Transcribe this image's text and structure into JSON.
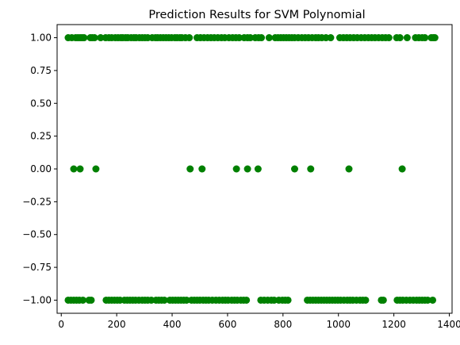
{
  "chart_data": {
    "type": "scatter",
    "title": "Prediction Results for SVM Polynomial",
    "xlabel": "",
    "ylabel": "",
    "xlim": [
      -15,
      1410
    ],
    "ylim": [
      -1.1,
      1.1
    ],
    "x_ticks": [
      0,
      200,
      400,
      600,
      800,
      1000,
      1200,
      1400
    ],
    "x_tick_labels": [
      "0",
      "200",
      "400",
      "600",
      "800",
      "1000",
      "1200",
      "1400"
    ],
    "y_ticks": [
      1.0,
      0.75,
      0.5,
      0.25,
      0.0,
      -0.25,
      -0.5,
      -0.75,
      -1.0
    ],
    "y_tick_labels": [
      "1.00",
      "0.75",
      "0.50",
      "0.25",
      "0.00",
      "−0.25",
      "−0.50",
      "−0.75",
      "−1.00"
    ],
    "grid": false,
    "marker_color": "#008000",
    "series": [
      {
        "points": [
          [
            25,
            1
          ],
          [
            38,
            1
          ],
          [
            52,
            1
          ],
          [
            60,
            1
          ],
          [
            68,
            1
          ],
          [
            75,
            1
          ],
          [
            82,
            1
          ],
          [
            105,
            1
          ],
          [
            112,
            1
          ],
          [
            120,
            1
          ],
          [
            142,
            1
          ],
          [
            160,
            1
          ],
          [
            172,
            1
          ],
          [
            182,
            1
          ],
          [
            195,
            1
          ],
          [
            205,
            1
          ],
          [
            215,
            1
          ],
          [
            222,
            1
          ],
          [
            232,
            1
          ],
          [
            240,
            1
          ],
          [
            252,
            1
          ],
          [
            262,
            1
          ],
          [
            270,
            1
          ],
          [
            282,
            1
          ],
          [
            292,
            1
          ],
          [
            302,
            1
          ],
          [
            312,
            1
          ],
          [
            328,
            1
          ],
          [
            340,
            1
          ],
          [
            348,
            1
          ],
          [
            358,
            1
          ],
          [
            368,
            1
          ],
          [
            378,
            1
          ],
          [
            388,
            1
          ],
          [
            398,
            1
          ],
          [
            410,
            1
          ],
          [
            418,
            1
          ],
          [
            428,
            1
          ],
          [
            435,
            1
          ],
          [
            448,
            1
          ],
          [
            462,
            1
          ],
          [
            490,
            1
          ],
          [
            502,
            1
          ],
          [
            515,
            1
          ],
          [
            528,
            1
          ],
          [
            540,
            1
          ],
          [
            552,
            1
          ],
          [
            565,
            1
          ],
          [
            578,
            1
          ],
          [
            590,
            1
          ],
          [
            605,
            1
          ],
          [
            618,
            1
          ],
          [
            630,
            1
          ],
          [
            642,
            1
          ],
          [
            660,
            1
          ],
          [
            672,
            1
          ],
          [
            682,
            1
          ],
          [
            700,
            1
          ],
          [
            712,
            1
          ],
          [
            722,
            1
          ],
          [
            750,
            1
          ],
          [
            772,
            1
          ],
          [
            782,
            1
          ],
          [
            792,
            1
          ],
          [
            802,
            1
          ],
          [
            812,
            1
          ],
          [
            822,
            1
          ],
          [
            832,
            1
          ],
          [
            842,
            1
          ],
          [
            855,
            1
          ],
          [
            868,
            1
          ],
          [
            880,
            1
          ],
          [
            892,
            1
          ],
          [
            905,
            1
          ],
          [
            918,
            1
          ],
          [
            928,
            1
          ],
          [
            940,
            1
          ],
          [
            955,
            1
          ],
          [
            972,
            1
          ],
          [
            1005,
            1
          ],
          [
            1018,
            1
          ],
          [
            1030,
            1
          ],
          [
            1042,
            1
          ],
          [
            1055,
            1
          ],
          [
            1068,
            1
          ],
          [
            1082,
            1
          ],
          [
            1095,
            1
          ],
          [
            1108,
            1
          ],
          [
            1120,
            1
          ],
          [
            1132,
            1
          ],
          [
            1145,
            1
          ],
          [
            1158,
            1
          ],
          [
            1170,
            1
          ],
          [
            1182,
            1
          ],
          [
            1210,
            1
          ],
          [
            1222,
            1
          ],
          [
            1248,
            1
          ],
          [
            1278,
            1
          ],
          [
            1290,
            1
          ],
          [
            1302,
            1
          ],
          [
            1312,
            1
          ],
          [
            1335,
            1
          ],
          [
            1342,
            1
          ],
          [
            1348,
            1
          ],
          [
            45,
            0
          ],
          [
            68,
            0
          ],
          [
            125,
            0
          ],
          [
            465,
            0
          ],
          [
            508,
            0
          ],
          [
            632,
            0
          ],
          [
            672,
            0
          ],
          [
            710,
            0
          ],
          [
            842,
            0
          ],
          [
            900,
            0
          ],
          [
            1038,
            0
          ],
          [
            1230,
            0
          ],
          [
            25,
            -1
          ],
          [
            35,
            -1
          ],
          [
            45,
            -1
          ],
          [
            55,
            -1
          ],
          [
            65,
            -1
          ],
          [
            78,
            -1
          ],
          [
            100,
            -1
          ],
          [
            108,
            -1
          ],
          [
            162,
            -1
          ],
          [
            172,
            -1
          ],
          [
            182,
            -1
          ],
          [
            192,
            -1
          ],
          [
            202,
            -1
          ],
          [
            212,
            -1
          ],
          [
            228,
            -1
          ],
          [
            238,
            -1
          ],
          [
            248,
            -1
          ],
          [
            258,
            -1
          ],
          [
            268,
            -1
          ],
          [
            280,
            -1
          ],
          [
            292,
            -1
          ],
          [
            302,
            -1
          ],
          [
            312,
            -1
          ],
          [
            325,
            -1
          ],
          [
            342,
            -1
          ],
          [
            352,
            -1
          ],
          [
            362,
            -1
          ],
          [
            372,
            -1
          ],
          [
            392,
            -1
          ],
          [
            402,
            -1
          ],
          [
            412,
            -1
          ],
          [
            422,
            -1
          ],
          [
            432,
            -1
          ],
          [
            442,
            -1
          ],
          [
            452,
            -1
          ],
          [
            470,
            -1
          ],
          [
            480,
            -1
          ],
          [
            490,
            -1
          ],
          [
            500,
            -1
          ],
          [
            512,
            -1
          ],
          [
            522,
            -1
          ],
          [
            532,
            -1
          ],
          [
            545,
            -1
          ],
          [
            558,
            -1
          ],
          [
            570,
            -1
          ],
          [
            582,
            -1
          ],
          [
            592,
            -1
          ],
          [
            602,
            -1
          ],
          [
            615,
            -1
          ],
          [
            625,
            -1
          ],
          [
            635,
            -1
          ],
          [
            648,
            -1
          ],
          [
            658,
            -1
          ],
          [
            668,
            -1
          ],
          [
            720,
            -1
          ],
          [
            732,
            -1
          ],
          [
            745,
            -1
          ],
          [
            758,
            -1
          ],
          [
            768,
            -1
          ],
          [
            785,
            -1
          ],
          [
            798,
            -1
          ],
          [
            808,
            -1
          ],
          [
            818,
            -1
          ],
          [
            888,
            -1
          ],
          [
            898,
            -1
          ],
          [
            908,
            -1
          ],
          [
            918,
            -1
          ],
          [
            928,
            -1
          ],
          [
            938,
            -1
          ],
          [
            948,
            -1
          ],
          [
            958,
            -1
          ],
          [
            968,
            -1
          ],
          [
            978,
            -1
          ],
          [
            988,
            -1
          ],
          [
            998,
            -1
          ],
          [
            1008,
            -1
          ],
          [
            1020,
            -1
          ],
          [
            1032,
            -1
          ],
          [
            1042,
            -1
          ],
          [
            1052,
            -1
          ],
          [
            1065,
            -1
          ],
          [
            1078,
            -1
          ],
          [
            1088,
            -1
          ],
          [
            1098,
            -1
          ],
          [
            1155,
            -1
          ],
          [
            1162,
            -1
          ],
          [
            1212,
            -1
          ],
          [
            1222,
            -1
          ],
          [
            1232,
            -1
          ],
          [
            1245,
            -1
          ],
          [
            1258,
            -1
          ],
          [
            1270,
            -1
          ],
          [
            1282,
            -1
          ],
          [
            1292,
            -1
          ],
          [
            1302,
            -1
          ],
          [
            1312,
            -1
          ],
          [
            1322,
            -1
          ],
          [
            1340,
            -1
          ]
        ]
      }
    ]
  }
}
